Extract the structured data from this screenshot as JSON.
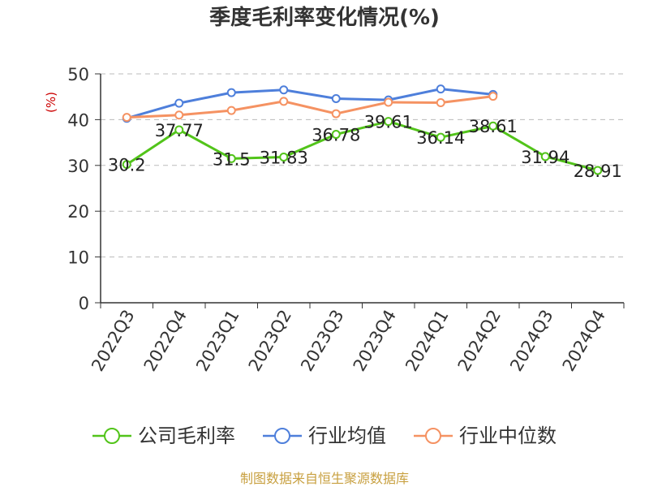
{
  "title": "季度毛利率变化情况(%)",
  "source_note": "制图数据来自恒生聚源数据库",
  "chart_data": {
    "type": "line",
    "title": "季度毛利率变化情况(%)",
    "xlabel": "",
    "ylabel": "(%)",
    "ylim": [
      0,
      50
    ],
    "yticks": [
      0,
      10,
      20,
      30,
      40,
      50
    ],
    "grid": true,
    "legend_position": "bottom",
    "categories": [
      "2022Q3",
      "2022Q4",
      "2023Q1",
      "2023Q2",
      "2023Q3",
      "2023Q4",
      "2024Q1",
      "2024Q2",
      "2024Q3",
      "2024Q4"
    ],
    "series": [
      {
        "name": "公司毛利率",
        "color": "#52c41a",
        "values": [
          30.2,
          37.77,
          31.5,
          31.83,
          36.78,
          39.61,
          36.14,
          38.61,
          31.94,
          28.91
        ],
        "labels": [
          "30.2",
          "37.77",
          "31.5",
          "31.83",
          "36.78",
          "39.61",
          "36.14",
          "38.61",
          "31.94",
          "28.91"
        ]
      },
      {
        "name": "行业均值",
        "color": "#4e7fdb",
        "values": [
          40.3,
          43.6,
          45.9,
          46.5,
          44.6,
          44.3,
          46.7,
          45.5,
          null,
          null
        ]
      },
      {
        "name": "行业中位数",
        "color": "#f59262",
        "values": [
          40.5,
          41.0,
          42.0,
          44.0,
          41.3,
          43.8,
          43.7,
          45.1,
          null,
          null
        ]
      }
    ]
  }
}
